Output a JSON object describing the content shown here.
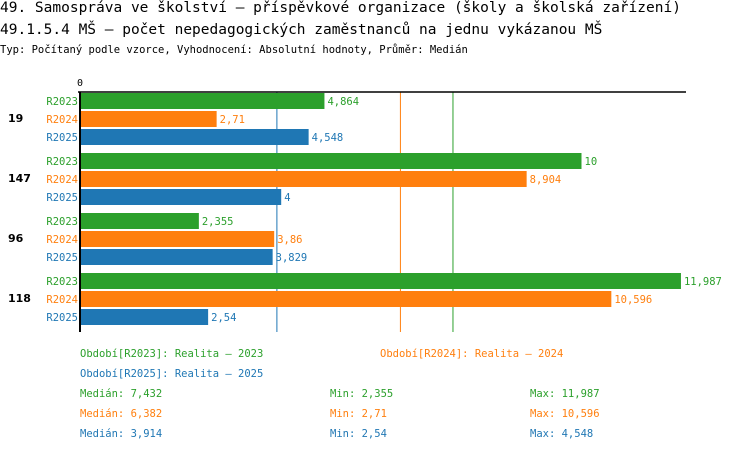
{
  "header": {
    "title": "49. Samospráva ve školství – příspěvkové organizace (školy a školská zařízení)",
    "subtitle": "49.1.5.4 MŠ – počet nepedagogických zaměstnanců na jednu vykázanou MŠ",
    "meta": "Typ: Počítaný podle vzorce, Vyhodnocení: Absolutní hodnoty, Průměr: Medián"
  },
  "chart_data": {
    "type": "bar",
    "orientation": "horizontal",
    "x_tick_label": "0",
    "xlim": [
      0,
      12
    ],
    "categories": [
      "19",
      "147",
      "96",
      "118"
    ],
    "series": [
      {
        "name": "R2023",
        "color": "#2ca02c",
        "values": [
          4.864,
          10,
          2.355,
          11.987
        ],
        "labels": [
          "4,864",
          "10",
          "2,355",
          "11,987"
        ]
      },
      {
        "name": "R2024",
        "color": "#ff7f0e",
        "values": [
          2.71,
          8.904,
          3.86,
          10.596
        ],
        "labels": [
          "2,71",
          "8,904",
          "3,86",
          "10,596"
        ]
      },
      {
        "name": "R2025",
        "color": "#1f77b4",
        "values": [
          4.548,
          4,
          3.829,
          2.54
        ],
        "labels": [
          "4,548",
          "4",
          "3,829",
          "2,54"
        ]
      }
    ],
    "medians": [
      7.432,
      6.382,
      3.914
    ]
  },
  "legend": [
    {
      "text": "Období[R2023]: Realita – 2023",
      "color": "#2ca02c"
    },
    {
      "text": "Období[R2024]: Realita – 2024",
      "color": "#ff7f0e"
    },
    {
      "text": "Období[R2025]: Realita – 2025",
      "color": "#1f77b4"
    }
  ],
  "stats": [
    {
      "median": "Medián: 7,432",
      "min": "Min: 2,355",
      "max": "Max: 11,987",
      "color": "#2ca02c"
    },
    {
      "median": "Medián: 6,382",
      "min": "Min: 2,71",
      "max": "Max: 10,596",
      "color": "#ff7f0e"
    },
    {
      "median": "Medián: 3,914",
      "min": "Min: 2,54",
      "max": "Max: 4,548",
      "color": "#1f77b4"
    }
  ]
}
